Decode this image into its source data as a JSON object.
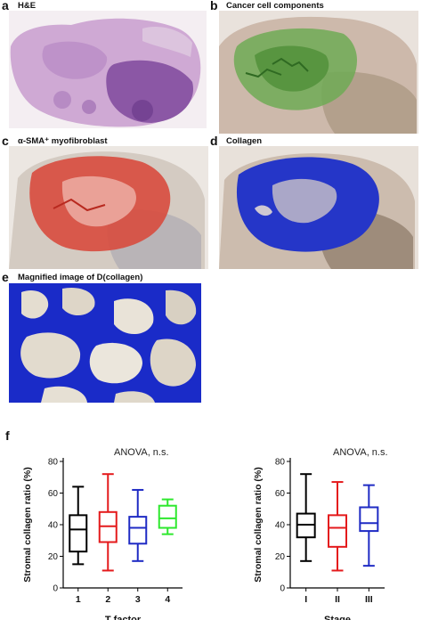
{
  "panels": {
    "a": {
      "letter": "a",
      "title": "H&E"
    },
    "b": {
      "letter": "b",
      "title": "Cancer cell components"
    },
    "c": {
      "letter": "c",
      "title": "α-SMA⁺ myofibroblast"
    },
    "d": {
      "letter": "d",
      "title": "Collagen"
    },
    "e": {
      "letter": "e",
      "title": "Magnified image of D(collagen)"
    },
    "f": {
      "letter": "f"
    }
  },
  "colors": {
    "he_tissue": "#c9a6cf",
    "he_dense": "#8e5aa6",
    "cancer_green": "#59a13d",
    "sma_red": "#d9473b",
    "collagen_blue": "#1a2bc8",
    "background_tissue": "#b8a89b",
    "series_1": "#000000",
    "series_2": "#e41a1c",
    "series_3": "#1f2bc4",
    "series_4": "#2ee82e"
  },
  "chart_data": [
    {
      "type": "box",
      "annotation": "ANOVA, n.s.",
      "ylabel": "Stromal collagen ratio (%)",
      "xlabel": "T factor",
      "ylim": [
        0,
        80
      ],
      "yticks": [
        "0",
        "20",
        "40",
        "60",
        "80"
      ],
      "categories": [
        "1",
        "2",
        "3",
        "4"
      ],
      "boxes": [
        {
          "category": "1",
          "min": 15,
          "q1": 23,
          "median": 37,
          "q3": 46,
          "max": 64,
          "color": "#000000"
        },
        {
          "category": "2",
          "min": 11,
          "q1": 29,
          "median": 39,
          "q3": 48,
          "max": 72,
          "color": "#e41a1c"
        },
        {
          "category": "3",
          "min": 17,
          "q1": 28,
          "median": 38,
          "q3": 45,
          "max": 62,
          "color": "#1f2bc4"
        },
        {
          "category": "4",
          "min": 34,
          "q1": 38,
          "median": 44,
          "q3": 52,
          "max": 56,
          "color": "#2ee82e"
        }
      ]
    },
    {
      "type": "box",
      "annotation": "ANOVA, n.s.",
      "ylabel": "Stromal collagen ratio (%)",
      "xlabel": "Stage",
      "ylim": [
        0,
        80
      ],
      "yticks": [
        "0",
        "20",
        "40",
        "60",
        "80"
      ],
      "categories": [
        "I",
        "II",
        "III"
      ],
      "boxes": [
        {
          "category": "I",
          "min": 17,
          "q1": 32,
          "median": 40,
          "q3": 47,
          "max": 72,
          "color": "#000000"
        },
        {
          "category": "II",
          "min": 11,
          "q1": 26,
          "median": 38,
          "q3": 46,
          "max": 67,
          "color": "#e41a1c"
        },
        {
          "category": "III",
          "min": 14,
          "q1": 36,
          "median": 41,
          "q3": 51,
          "max": 65,
          "color": "#1f2bc4"
        }
      ]
    }
  ]
}
